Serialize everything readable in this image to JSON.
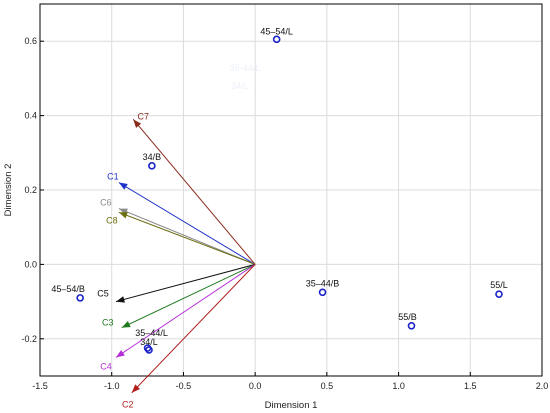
{
  "chart_data": {
    "type": "scatter",
    "xlabel": "Dimension   1",
    "ylabel": "Dimension   2",
    "xlim": [
      -1.5,
      2.0
    ],
    "ylim": [
      -0.3,
      0.7
    ],
    "xticks": [
      -1.5,
      -1.0,
      -0.5,
      0.0,
      0.5,
      1.0,
      1.5,
      2.0
    ],
    "yticks": [
      -0.2,
      0.0,
      0.2,
      0.4,
      0.6
    ],
    "grid": true,
    "points": [
      {
        "label": "45–54/L",
        "x": 0.15,
        "y": 0.605
      },
      {
        "label": "34/B",
        "x": -0.72,
        "y": 0.265
      },
      {
        "label": "45–54/B",
        "x": -1.22,
        "y": -0.09
      },
      {
        "label": "35–44/B",
        "x": 0.47,
        "y": -0.075
      },
      {
        "label": "55/L",
        "x": 1.7,
        "y": -0.08
      },
      {
        "label": "55/B",
        "x": 1.09,
        "y": -0.165
      },
      {
        "label": "35–44/L",
        "x": -0.75,
        "y": -0.225
      },
      {
        "label": "34/L",
        "x": -0.74,
        "y": -0.23
      }
    ],
    "vectors": [
      {
        "label": "C7",
        "x": -0.85,
        "y": 0.39,
        "color": "#8b2b1c"
      },
      {
        "label": "C1",
        "x": -0.95,
        "y": 0.22,
        "color": "#1f33c9"
      },
      {
        "label": "C6",
        "x": -0.95,
        "y": 0.15,
        "color": "#8a8a8a"
      },
      {
        "label": "C8",
        "x": -0.95,
        "y": 0.14,
        "color": "#6d6d12"
      },
      {
        "label": "C5",
        "x": -0.97,
        "y": -0.1,
        "color": "#111111"
      },
      {
        "label": "C3",
        "x": -0.93,
        "y": -0.17,
        "color": "#1d7a1d"
      },
      {
        "label": "C4",
        "x": -0.97,
        "y": -0.25,
        "color": "#b52fd6"
      },
      {
        "label": "C2",
        "x": -0.86,
        "y": -0.345,
        "color": "#b01e1e"
      }
    ],
    "faint_labels": [
      "35-44/L",
      "34/L"
    ]
  }
}
